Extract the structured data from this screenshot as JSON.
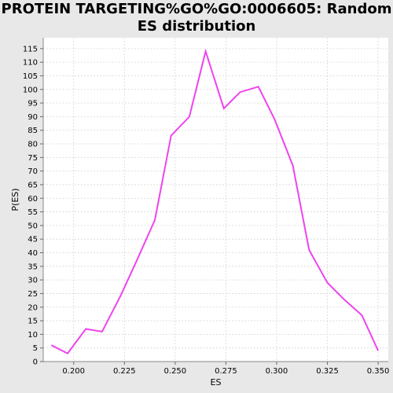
{
  "chart_data": {
    "type": "line",
    "title": "PROTEIN TARGETING%GO%GO:0006605: Random ES distribution",
    "xlabel": "ES",
    "ylabel": "P(ES)",
    "xlim": [
      0.185,
      0.355
    ],
    "ylim": [
      0,
      119
    ],
    "x_ticks": [
      "0.200",
      "0.225",
      "0.250",
      "0.275",
      "0.300",
      "0.325",
      "0.350"
    ],
    "y_ticks": [
      "0",
      "5",
      "10",
      "15",
      "20",
      "25",
      "30",
      "35",
      "40",
      "45",
      "50",
      "55",
      "60",
      "65",
      "70",
      "75",
      "80",
      "85",
      "90",
      "95",
      "100",
      "105",
      "110",
      "115"
    ],
    "grid": true,
    "line_color": "#ee44ee",
    "plot_background": "#ffffff",
    "page_background": "#e8e8e8",
    "series": [
      {
        "x": [
          0.189,
          0.197,
          0.206,
          0.214,
          0.223,
          0.231,
          0.24,
          0.248,
          0.257,
          0.265,
          0.274,
          0.282,
          0.291,
          0.299,
          0.308,
          0.316,
          0.325,
          0.333,
          0.342,
          0.35
        ],
        "values": [
          6,
          3,
          12,
          11,
          24,
          37,
          52,
          83,
          90,
          114,
          93,
          99,
          101,
          89,
          72,
          41,
          29,
          23,
          17,
          4
        ]
      }
    ]
  }
}
